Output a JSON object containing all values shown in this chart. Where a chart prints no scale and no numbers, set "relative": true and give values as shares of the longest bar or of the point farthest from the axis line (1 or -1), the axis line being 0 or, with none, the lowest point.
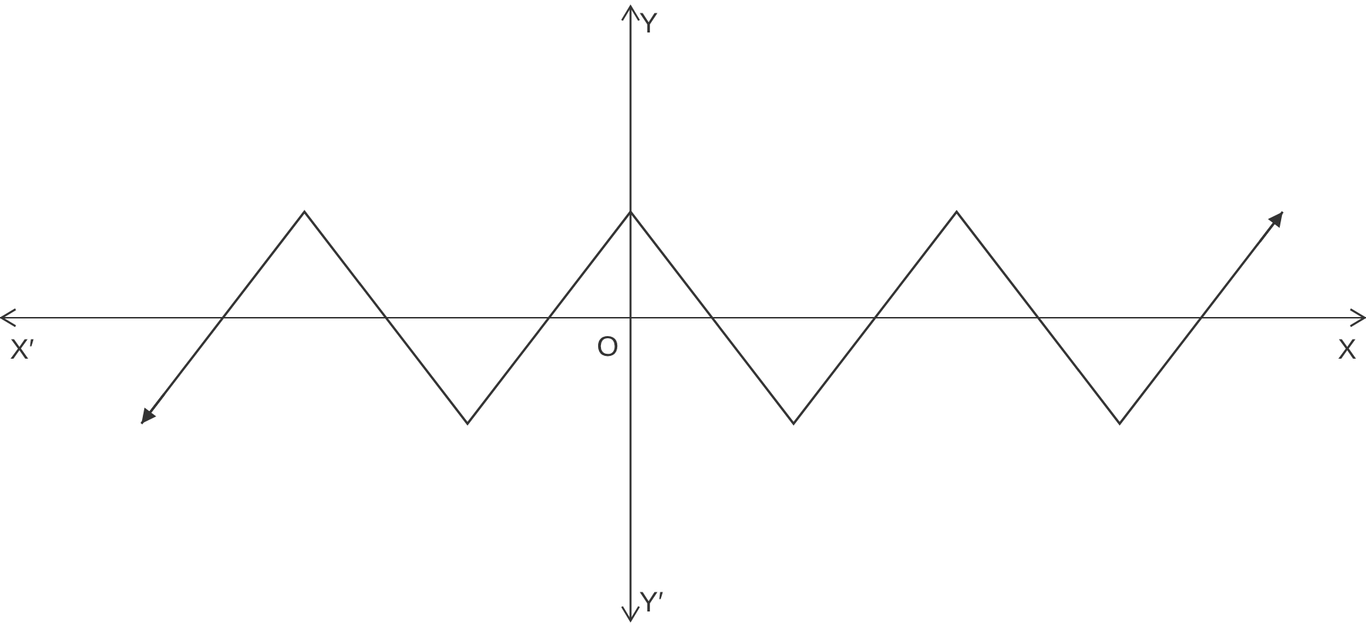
{
  "chart_data": {
    "type": "line",
    "relative": true,
    "xlabel": "X",
    "annotations": [
      "X′",
      "Y′",
      "O",
      "Y"
    ],
    "categories": [
      null,
      null,
      null,
      null,
      null,
      null,
      null,
      null
    ],
    "series": [
      {
        "color": "#333333",
        "values": [
          -1,
          1,
          -1,
          1,
          -1,
          1,
          -1,
          1
        ]
      }
    ],
    "marker": "none",
    "line_style": "solid",
    "grid": false
  }
}
